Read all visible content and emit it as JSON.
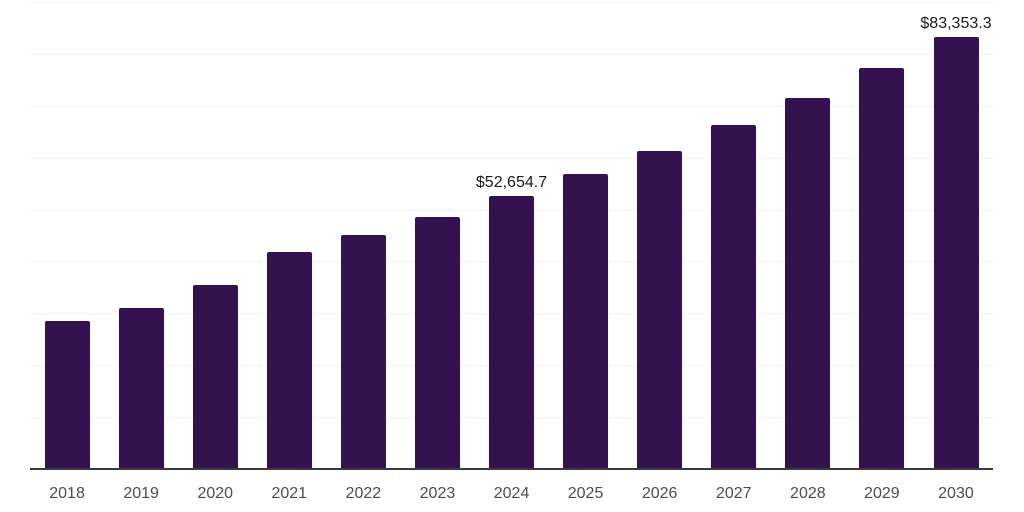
{
  "chart_data": {
    "type": "bar",
    "title": "",
    "xlabel": "",
    "ylabel": "",
    "categories": [
      "2018",
      "2019",
      "2020",
      "2021",
      "2022",
      "2023",
      "2024",
      "2025",
      "2026",
      "2027",
      "2028",
      "2029",
      "2030"
    ],
    "values": [
      28500,
      31000,
      35500,
      41800,
      45200,
      48600,
      52654.7,
      56845,
      61370,
      66255,
      71528,
      77222,
      83353.3
    ],
    "point_labels": [
      "",
      "",
      "",
      "",
      "",
      "",
      "$52,654.7",
      "",
      "",
      "",
      "",
      "",
      "$83,353.3"
    ],
    "ylim": [
      0,
      90000
    ],
    "gridline_step": 10000,
    "grid": true,
    "legend": false,
    "colors": {
      "bar": "#34114F",
      "gridline": "#f2f2f2",
      "axis_line": "#3a3a3a",
      "tick_label": "#4d4d4d",
      "data_label": "#1a1a1a",
      "background": "#ffffff"
    }
  }
}
